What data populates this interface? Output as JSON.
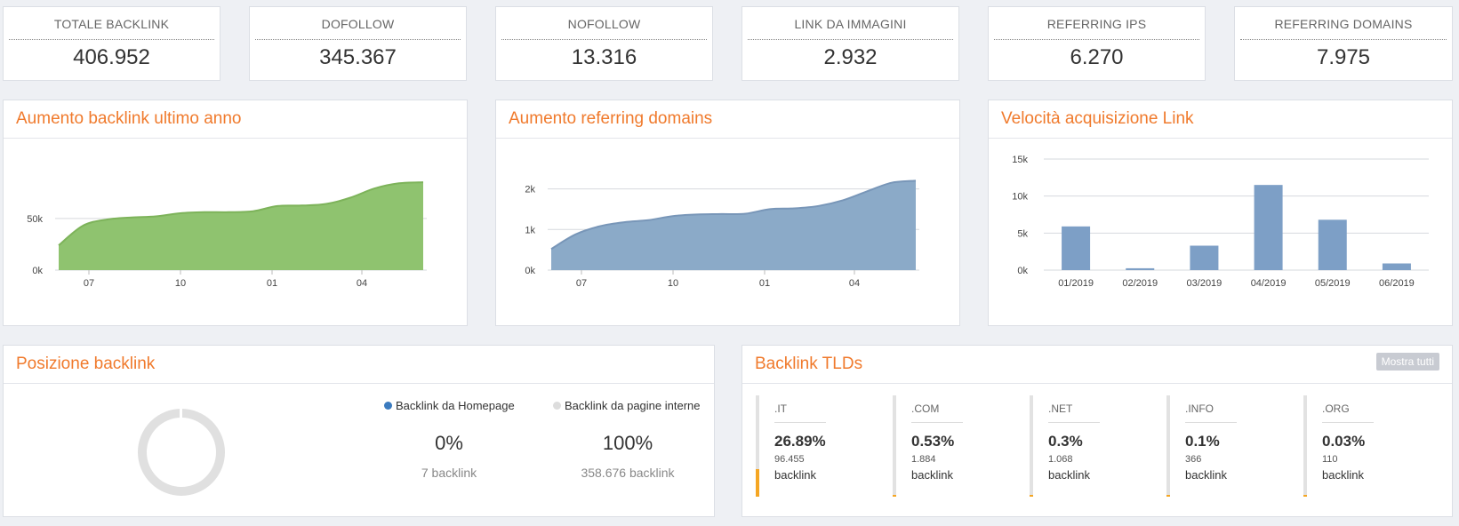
{
  "stats": [
    {
      "label": "TOTALE BACKLINK",
      "value": "406.952"
    },
    {
      "label": "DOFOLLOW",
      "value": "345.367"
    },
    {
      "label": "NOFOLLOW",
      "value": "13.316"
    },
    {
      "label": "LINK DA IMMAGINI",
      "value": "2.932"
    },
    {
      "label": "REFERRING IPS",
      "value": "6.270"
    },
    {
      "label": "REFERRING DOMAINS",
      "value": "7.975"
    }
  ],
  "colors": {
    "accent": "#f07a2c",
    "green": "#8fc36f",
    "blue": "#8baac8",
    "bar": "#7d9fc6",
    "orange": "#f5a623"
  },
  "chart_data": [
    {
      "type": "area",
      "title": "Aumento backlink ultimo anno",
      "x_ticks": [
        "07",
        "10",
        "01",
        "04"
      ],
      "y_ticks": [
        {
          "v": 0,
          "label": "0k"
        },
        {
          "v": 50000,
          "label": "50k"
        }
      ],
      "ylim": [
        0,
        110000
      ],
      "series": [
        {
          "values": [
            24000,
            43000,
            49000,
            51000,
            52000,
            55000,
            56000,
            56000,
            57000,
            62000,
            62500,
            64000,
            70000,
            79000,
            84000,
            85000
          ]
        }
      ]
    },
    {
      "type": "area",
      "title": "Aumento referring domains",
      "x_ticks": [
        "07",
        "10",
        "01",
        "04"
      ],
      "y_ticks": [
        {
          "v": 0,
          "label": "0k"
        },
        {
          "v": 1000,
          "label": "1k"
        },
        {
          "v": 2000,
          "label": "2k"
        }
      ],
      "ylim": [
        0,
        2800
      ],
      "series": [
        {
          "values": [
            520,
            880,
            1080,
            1180,
            1230,
            1330,
            1370,
            1380,
            1390,
            1500,
            1520,
            1580,
            1720,
            1940,
            2150,
            2200
          ]
        }
      ]
    },
    {
      "type": "bar",
      "title": "Velocità acquisizione Link",
      "categories": [
        "01/2019",
        "02/2019",
        "03/2019",
        "04/2019",
        "05/2019",
        "06/2019"
      ],
      "values": [
        5900,
        250,
        3300,
        11500,
        6800,
        900
      ],
      "y_ticks": [
        {
          "v": 0,
          "label": "0k"
        },
        {
          "v": 5000,
          "label": "5k"
        },
        {
          "v": 10000,
          "label": "10k"
        },
        {
          "v": 15000,
          "label": "15k"
        }
      ],
      "ylim": [
        0,
        15000
      ]
    }
  ],
  "position": {
    "title": "Posizione backlink",
    "legend": [
      {
        "label": "Backlink da Homepage",
        "color": "#3b7bbf",
        "pct": "0%",
        "count": "7 backlink",
        "share": 0.0
      },
      {
        "label": "Backlink da pagine interne",
        "color": "#dddddd",
        "pct": "100%",
        "count": "358.676 backlink",
        "share": 1.0
      }
    ]
  },
  "tlds": {
    "title": "Backlink TLDs",
    "button": "Mostra tutti",
    "items": [
      {
        "name": ".IT",
        "pct": "26.89%",
        "count": "96.455",
        "unit": "backlink",
        "share": 0.2689
      },
      {
        "name": ".COM",
        "pct": "0.53%",
        "count": "1.884",
        "unit": "backlink",
        "share": 0.0053
      },
      {
        "name": ".NET",
        "pct": "0.3%",
        "count": "1.068",
        "unit": "backlink",
        "share": 0.003
      },
      {
        "name": ".INFO",
        "pct": "0.1%",
        "count": "366",
        "unit": "backlink",
        "share": 0.001
      },
      {
        "name": ".ORG",
        "pct": "0.03%",
        "count": "110",
        "unit": "backlink",
        "share": 0.0003
      }
    ]
  }
}
